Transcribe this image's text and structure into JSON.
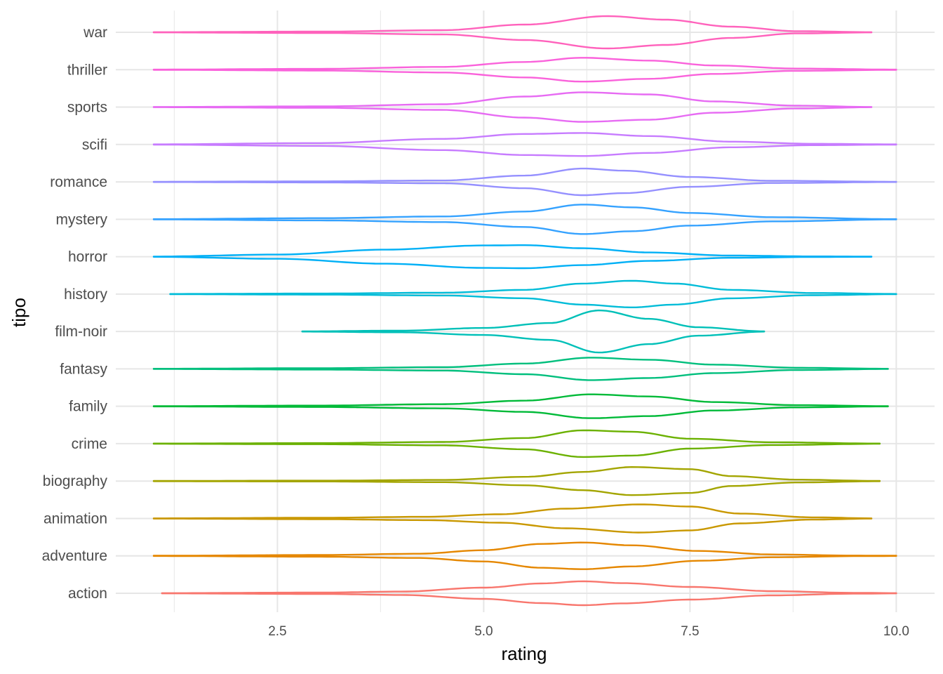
{
  "chart_data": {
    "type": "violin",
    "title": "",
    "xlabel": "rating",
    "ylabel": "tipo",
    "xlim": [
      0.6,
      10.2
    ],
    "x_ticks": [
      2.5,
      5.0,
      7.5,
      10.0
    ],
    "x_tick_labels": [
      "2.5",
      "5.0",
      "7.5",
      "10.0"
    ],
    "grid": true,
    "legend": "none",
    "series": [
      {
        "name": "action",
        "color": "#F8766D",
        "min": 1.1,
        "max": 10.0,
        "density": [
          [
            1.1,
            0.01
          ],
          [
            3,
            0.05
          ],
          [
            4,
            0.12
          ],
          [
            5,
            0.4
          ],
          [
            5.7,
            0.7
          ],
          [
            6.2,
            0.85
          ],
          [
            6.7,
            0.72
          ],
          [
            7.5,
            0.45
          ],
          [
            8.5,
            0.15
          ],
          [
            9.5,
            0.03
          ],
          [
            10,
            0.01
          ]
        ]
      },
      {
        "name": "adventure",
        "color": "#E58700",
        "min": 1.0,
        "max": 10.0,
        "density": [
          [
            1,
            0.01
          ],
          [
            3,
            0.06
          ],
          [
            4.2,
            0.15
          ],
          [
            5,
            0.4
          ],
          [
            5.7,
            0.85
          ],
          [
            6.2,
            0.95
          ],
          [
            6.8,
            0.75
          ],
          [
            7.6,
            0.35
          ],
          [
            8.5,
            0.1
          ],
          [
            9.5,
            0.02
          ],
          [
            10,
            0.01
          ]
        ]
      },
      {
        "name": "animation",
        "color": "#C99800",
        "min": 1.0,
        "max": 9.7,
        "density": [
          [
            1,
            0.01
          ],
          [
            3,
            0.05
          ],
          [
            4.3,
            0.12
          ],
          [
            5.2,
            0.3
          ],
          [
            6,
            0.7
          ],
          [
            6.9,
            1.0
          ],
          [
            7.5,
            0.85
          ],
          [
            8.1,
            0.35
          ],
          [
            9,
            0.08
          ],
          [
            9.7,
            0.01
          ]
        ]
      },
      {
        "name": "biography",
        "color": "#A3A500",
        "min": 1.0,
        "max": 9.8,
        "density": [
          [
            1,
            0.01
          ],
          [
            3,
            0.03
          ],
          [
            4.5,
            0.08
          ],
          [
            5.5,
            0.3
          ],
          [
            6.2,
            0.65
          ],
          [
            6.8,
            1.0
          ],
          [
            7.5,
            0.85
          ],
          [
            8,
            0.35
          ],
          [
            8.8,
            0.1
          ],
          [
            9.8,
            0.01
          ]
        ]
      },
      {
        "name": "crime",
        "color": "#6BB100",
        "min": 1.0,
        "max": 9.8,
        "density": [
          [
            1,
            0.01
          ],
          [
            3,
            0.04
          ],
          [
            4.5,
            0.12
          ],
          [
            5.5,
            0.4
          ],
          [
            6.2,
            0.95
          ],
          [
            6.8,
            0.85
          ],
          [
            7.5,
            0.35
          ],
          [
            8.5,
            0.1
          ],
          [
            9.8,
            0.01
          ]
        ]
      },
      {
        "name": "family",
        "color": "#00BA38",
        "min": 1.0,
        "max": 9.9,
        "density": [
          [
            1,
            0.01
          ],
          [
            3,
            0.05
          ],
          [
            4.5,
            0.15
          ],
          [
            5.5,
            0.4
          ],
          [
            6.3,
            0.85
          ],
          [
            7,
            0.7
          ],
          [
            7.8,
            0.3
          ],
          [
            8.8,
            0.08
          ],
          [
            9.9,
            0.01
          ]
        ]
      },
      {
        "name": "fantasy",
        "color": "#00BF7D",
        "min": 1.0,
        "max": 9.9,
        "density": [
          [
            1,
            0.01
          ],
          [
            3,
            0.05
          ],
          [
            4.5,
            0.12
          ],
          [
            5.5,
            0.38
          ],
          [
            6.3,
            0.8
          ],
          [
            7,
            0.65
          ],
          [
            7.8,
            0.3
          ],
          [
            8.8,
            0.08
          ],
          [
            9.9,
            0.01
          ]
        ]
      },
      {
        "name": "film-noir",
        "color": "#00C0B8",
        "min": 2.8,
        "max": 8.4,
        "density": [
          [
            2.8,
            0.01
          ],
          [
            4,
            0.06
          ],
          [
            5,
            0.25
          ],
          [
            5.8,
            0.6
          ],
          [
            6.4,
            1.5
          ],
          [
            7,
            0.9
          ],
          [
            7.6,
            0.3
          ],
          [
            8.4,
            0.01
          ]
        ]
      },
      {
        "name": "history",
        "color": "#00BCD8",
        "min": 1.2,
        "max": 10.0,
        "density": [
          [
            1.2,
            0.01
          ],
          [
            3,
            0.04
          ],
          [
            4.5,
            0.1
          ],
          [
            5.5,
            0.3
          ],
          [
            6.2,
            0.75
          ],
          [
            6.8,
            0.95
          ],
          [
            7.3,
            0.75
          ],
          [
            8,
            0.3
          ],
          [
            9,
            0.08
          ],
          [
            10,
            0.01
          ]
        ]
      },
      {
        "name": "horror",
        "color": "#00B0F6",
        "min": 1.0,
        "max": 9.7,
        "density": [
          [
            1,
            0.01
          ],
          [
            2.5,
            0.15
          ],
          [
            3.8,
            0.5
          ],
          [
            5,
            0.8
          ],
          [
            5.5,
            0.82
          ],
          [
            6.2,
            0.6
          ],
          [
            7,
            0.3
          ],
          [
            8,
            0.08
          ],
          [
            9,
            0.02
          ],
          [
            9.7,
            0.01
          ]
        ]
      },
      {
        "name": "mystery",
        "color": "#35A2FF",
        "min": 1.0,
        "max": 10.0,
        "density": [
          [
            1,
            0.01
          ],
          [
            3,
            0.08
          ],
          [
            4.5,
            0.2
          ],
          [
            5.5,
            0.55
          ],
          [
            6.2,
            1.05
          ],
          [
            6.8,
            0.85
          ],
          [
            7.5,
            0.45
          ],
          [
            8.5,
            0.15
          ],
          [
            10,
            0.01
          ]
        ]
      },
      {
        "name": "romance",
        "color": "#9590FF",
        "min": 1.0,
        "max": 10.0,
        "density": [
          [
            1,
            0.01
          ],
          [
            3,
            0.04
          ],
          [
            4.5,
            0.1
          ],
          [
            5.5,
            0.45
          ],
          [
            6.2,
            0.95
          ],
          [
            6.7,
            0.8
          ],
          [
            7.5,
            0.35
          ],
          [
            8.5,
            0.08
          ],
          [
            10,
            0.01
          ]
        ]
      },
      {
        "name": "scifi",
        "color": "#C77CFF",
        "min": 1.0,
        "max": 10.0,
        "density": [
          [
            1,
            0.01
          ],
          [
            3,
            0.1
          ],
          [
            4.5,
            0.4
          ],
          [
            5.5,
            0.75
          ],
          [
            6.2,
            0.82
          ],
          [
            7,
            0.6
          ],
          [
            8,
            0.2
          ],
          [
            9,
            0.05
          ],
          [
            10,
            0.01
          ]
        ]
      },
      {
        "name": "sports",
        "color": "#E76BF3",
        "min": 1.0,
        "max": 9.7,
        "density": [
          [
            1,
            0.01
          ],
          [
            3,
            0.05
          ],
          [
            4.5,
            0.2
          ],
          [
            5.5,
            0.75
          ],
          [
            6.2,
            1.05
          ],
          [
            7,
            0.9
          ],
          [
            7.8,
            0.4
          ],
          [
            8.8,
            0.1
          ],
          [
            9.7,
            0.01
          ]
        ]
      },
      {
        "name": "thriller",
        "color": "#FA62DB",
        "min": 1.0,
        "max": 10.0,
        "density": [
          [
            1,
            0.01
          ],
          [
            3,
            0.06
          ],
          [
            4.5,
            0.2
          ],
          [
            5.5,
            0.55
          ],
          [
            6.2,
            0.85
          ],
          [
            7,
            0.65
          ],
          [
            7.8,
            0.3
          ],
          [
            8.8,
            0.08
          ],
          [
            10,
            0.01
          ]
        ]
      },
      {
        "name": "war",
        "color": "#FF62BC",
        "min": 1.0,
        "max": 9.7,
        "density": [
          [
            1,
            0.01
          ],
          [
            3,
            0.05
          ],
          [
            4.5,
            0.15
          ],
          [
            5.5,
            0.55
          ],
          [
            6.5,
            1.15
          ],
          [
            7.2,
            0.9
          ],
          [
            8,
            0.4
          ],
          [
            8.8,
            0.08
          ],
          [
            9.7,
            0.01
          ]
        ]
      }
    ]
  }
}
